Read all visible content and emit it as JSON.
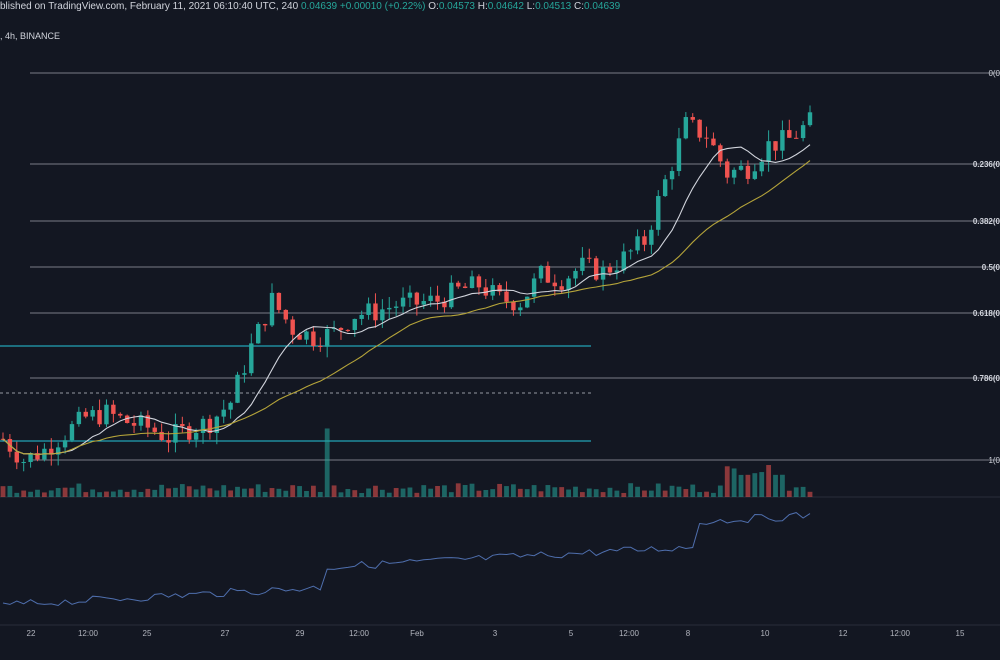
{
  "header": {
    "publish_text": "blished on TradingView.com, February 11, 2021 06:10:40 UTC",
    "ohlc_prefix": ", 240",
    "last_price": "0.04639",
    "change": "+0.00010 (+0.22%)",
    "open_label": "O:",
    "open": "0.04573",
    "high_label": "H:",
    "high": "0.04642",
    "low_label": "L:",
    "low": "0.04513",
    "close_label": "C:",
    "close": "0.04639",
    "interval_exchange": ", 4h, BINANCE"
  },
  "colors": {
    "background": "#131722",
    "bull": "#26a69a",
    "bear": "#ef5350",
    "fib_line": "#b2b5be",
    "channel_line": "#26c6da",
    "ma_fast": "#d1d4dc",
    "ma_slow": "#b5a43a",
    "indicator_line": "#4f6fae",
    "grid": "#1e222d"
  },
  "chart_data": {
    "type": "candlestick",
    "x_ticks": [
      "22",
      "12:00",
      "25",
      "27",
      "29",
      "12:00",
      "Feb",
      "3",
      "5",
      "12:00",
      "8",
      "10",
      "12",
      "12:00",
      "15"
    ],
    "fib_levels": [
      {
        "label": "0(0",
        "level": 0
      },
      {
        "label": "0.236(0",
        "level": 0.236
      },
      {
        "label": "0.382(0",
        "level": 0.382
      },
      {
        "label": "0.5(0",
        "level": 0.5
      },
      {
        "label": "0.618(0",
        "level": 0.618
      },
      {
        "label": "0.786(0",
        "level": 0.786
      },
      {
        "label": "1(0",
        "level": 1
      }
    ],
    "price_seed": [
      0.024,
      0.0225,
      0.0232,
      0.0244,
      0.0255,
      0.0258,
      0.0252,
      0.0248,
      0.0241,
      0.0247,
      0.0252,
      0.0266,
      0.0305,
      0.0338,
      0.0318,
      0.0312,
      0.0315,
      0.0328,
      0.033,
      0.0335,
      0.0336,
      0.0338,
      0.0345,
      0.0349,
      0.0339,
      0.0337,
      0.0356,
      0.0353,
      0.0362,
      0.0358,
      0.0368,
      0.038,
      0.0422,
      0.0462,
      0.0455,
      0.0428,
      0.0432,
      0.0448,
      0.0452,
      0.0464
    ],
    "series": [
      {
        "name": "Volume"
      },
      {
        "name": "Indicator"
      }
    ]
  }
}
